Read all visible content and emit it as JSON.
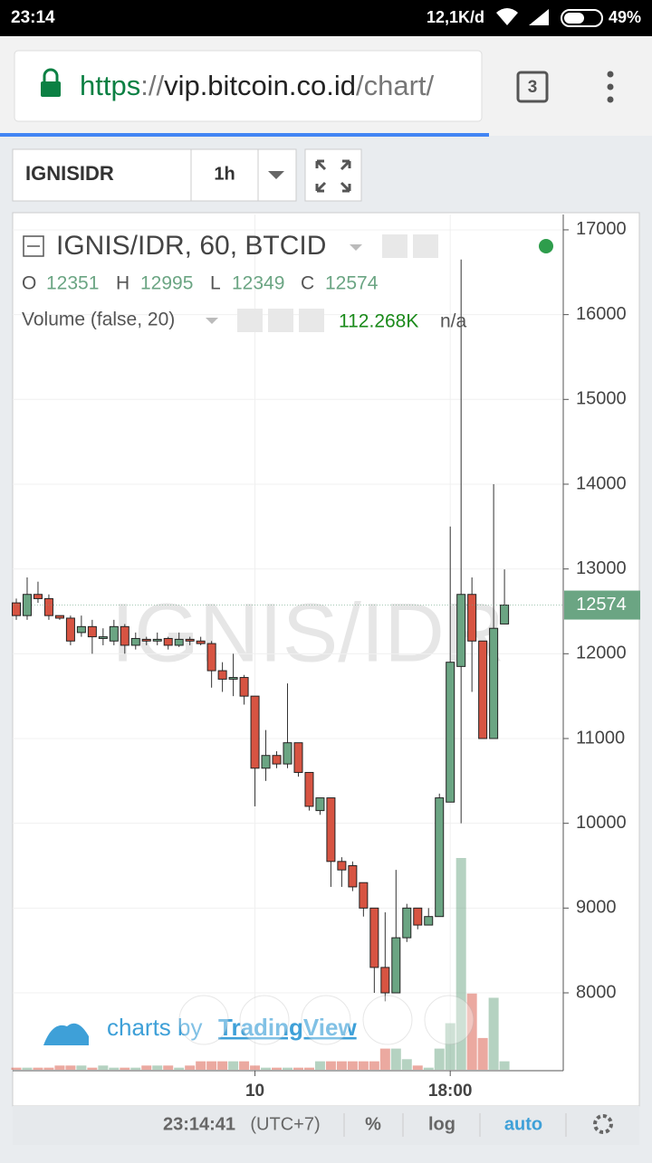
{
  "status_bar": {
    "time": "23:14",
    "data_rate": "12,1K/d",
    "battery": "49%"
  },
  "browser": {
    "url_scheme": "https",
    "url_sep": "://",
    "url_host": "vip.bitcoin.co.id",
    "url_path": "/chart/",
    "tab_count": "3"
  },
  "toolbar": {
    "symbol": "IGNISIDR",
    "interval": "1h"
  },
  "chart_data": {
    "type": "candlestick",
    "title": "IGNIS/IDR, 60, BTCID",
    "watermark": "IGNIS/IDR",
    "ohlc_labels": [
      "O",
      "H",
      "L",
      "C"
    ],
    "volume_label": "Volume (false, 20)",
    "volume_value": "112.268K",
    "volume_na": "n/a",
    "categories": [
      null,
      null,
      null,
      null,
      null,
      null,
      null,
      null,
      null,
      null,
      null,
      null,
      null,
      null,
      null,
      null,
      null,
      null,
      null,
      null,
      null,
      null,
      "10",
      null,
      null,
      null,
      null,
      null,
      null,
      null,
      null,
      null,
      null,
      null,
      null,
      null,
      null,
      null,
      null,
      null,
      "18:00",
      null,
      null,
      null,
      null,
      null
    ],
    "open": [
      12600,
      12450,
      12700,
      12650,
      12450,
      12420,
      12250,
      12320,
      12180,
      12150,
      12320,
      12100,
      12170,
      12150,
      12180,
      12100,
      12170,
      12150,
      12120,
      11800,
      11700,
      11720,
      11500,
      10650,
      10800,
      10700,
      10950,
      10600,
      10150,
      10300,
      9550,
      9500,
      9300,
      9000,
      8300,
      8000,
      8650,
      9000,
      8800,
      8900,
      10250,
      11850,
      12700,
      12150,
      11000,
      12351
    ],
    "high": [
      12650,
      12900,
      12850,
      12700,
      12450,
      12450,
      12450,
      12400,
      12300,
      12400,
      12350,
      12250,
      12200,
      12250,
      12200,
      12250,
      12200,
      12200,
      12150,
      11900,
      12000,
      11750,
      11500,
      11100,
      10850,
      11650,
      10950,
      10600,
      10300,
      10300,
      9600,
      9550,
      9300,
      9000,
      8950,
      9450,
      9050,
      9000,
      9000,
      10350,
      13500,
      16650,
      12900,
      12150,
      14000,
      12995
    ],
    "low": [
      12400,
      12400,
      12600,
      12400,
      12400,
      12100,
      12200,
      12000,
      12100,
      12100,
      12000,
      12050,
      12100,
      12100,
      12050,
      12080,
      12100,
      12100,
      11600,
      11550,
      11500,
      11400,
      10200,
      10500,
      10650,
      10650,
      10550,
      10150,
      10100,
      9250,
      9250,
      9200,
      8900,
      8000,
      7900,
      8000,
      8600,
      8750,
      8800,
      8900,
      10250,
      10000,
      11550,
      11000,
      11000,
      12349
    ],
    "close": [
      12450,
      12700,
      12650,
      12450,
      12420,
      12150,
      12320,
      12200,
      12200,
      12320,
      12100,
      12180,
      12150,
      12170,
      12100,
      12170,
      12150,
      12120,
      11800,
      11700,
      11720,
      11500,
      10650,
      10800,
      10700,
      10950,
      10600,
      10200,
      10300,
      9550,
      9450,
      9250,
      9000,
      8300,
      8000,
      8650,
      9000,
      8800,
      8900,
      10300,
      11900,
      12700,
      12150,
      11000,
      12300,
      12574
    ],
    "volume": [
      1,
      1,
      1,
      1,
      2,
      2,
      2,
      1,
      2,
      1,
      1,
      1,
      2,
      2,
      2,
      1,
      2,
      4,
      4,
      4,
      4,
      4,
      2,
      1,
      1,
      1,
      1,
      1,
      4,
      4,
      4,
      4,
      4,
      4,
      10,
      10,
      5,
      2,
      1,
      10,
      22,
      100,
      36,
      15,
      34,
      4
    ],
    "up_color": "#6ba583",
    "down_color": "#d75442",
    "ylim": [
      7082,
      17181
    ],
    "yticks": [
      8000,
      9000,
      10000,
      11000,
      12000,
      13000,
      14000,
      15000,
      16000,
      17000
    ],
    "grid": true
  },
  "branding": {
    "prefix": "charts by",
    "name": "TradingView"
  },
  "bottom_bar": {
    "clock": "23:14:41",
    "timezone": "(UTC+7)",
    "percent": "%",
    "log": "log",
    "auto": "auto"
  }
}
